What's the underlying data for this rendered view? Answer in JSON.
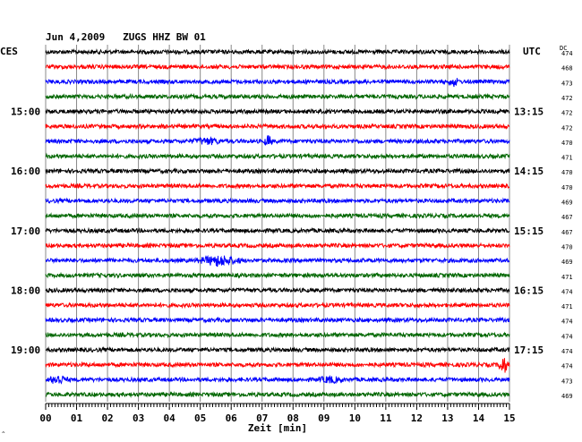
{
  "chart_data": {
    "type": "line",
    "title": "Jun 4,2009   ZUGS HHZ BW 01",
    "left_timezone_label": "CES",
    "right_timezone_label": "UTC",
    "dc_header": "DC",
    "xlabel": "Zeit [min]",
    "xlim": [
      0,
      15
    ],
    "xticks": [
      "00",
      "01",
      "02",
      "03",
      "04",
      "05",
      "06",
      "07",
      "08",
      "09",
      "10",
      "11",
      "12",
      "13",
      "14",
      "15"
    ],
    "grid": true,
    "line_colors": [
      "#000000",
      "#ff0000",
      "#0000ff",
      "#006600"
    ],
    "traces_count": 24,
    "left_hour_labels": [
      {
        "trace": 4,
        "label": "15:00"
      },
      {
        "trace": 8,
        "label": "16:00"
      },
      {
        "trace": 12,
        "label": "17:00"
      },
      {
        "trace": 16,
        "label": "18:00"
      },
      {
        "trace": 20,
        "label": "19:00"
      }
    ],
    "right_hour_labels": [
      {
        "trace": 4,
        "label": "13:15"
      },
      {
        "trace": 8,
        "label": "14:15"
      },
      {
        "trace": 12,
        "label": "15:15"
      },
      {
        "trace": 16,
        "label": "16:15"
      },
      {
        "trace": 20,
        "label": "17:15"
      }
    ],
    "dc_values": [
      "474",
      "468",
      "473",
      "472",
      "472",
      "472",
      "470",
      "471",
      "470",
      "470",
      "469",
      "467",
      "467",
      "470",
      "469",
      "471",
      "474",
      "471",
      "474",
      "474",
      "474",
      "474",
      "473",
      "469"
    ],
    "events": [
      {
        "trace": 2,
        "minute": 13.2,
        "amplitude": 2.0,
        "duration": 0.4
      },
      {
        "trace": 6,
        "minute": 7.2,
        "amplitude": 2.6,
        "duration": 0.3
      },
      {
        "trace": 6,
        "minute": 5.2,
        "amplitude": 1.3,
        "duration": 1.2
      },
      {
        "trace": 14,
        "minute": 5.6,
        "amplitude": 2.4,
        "duration": 1.6
      },
      {
        "trace": 21,
        "minute": 14.8,
        "amplitude": 4.5,
        "duration": 0.35
      },
      {
        "trace": 22,
        "minute": 0.4,
        "amplitude": 2.2,
        "duration": 0.7
      },
      {
        "trace": 22,
        "minute": 9.2,
        "amplitude": 1.2,
        "duration": 1.0
      }
    ]
  }
}
